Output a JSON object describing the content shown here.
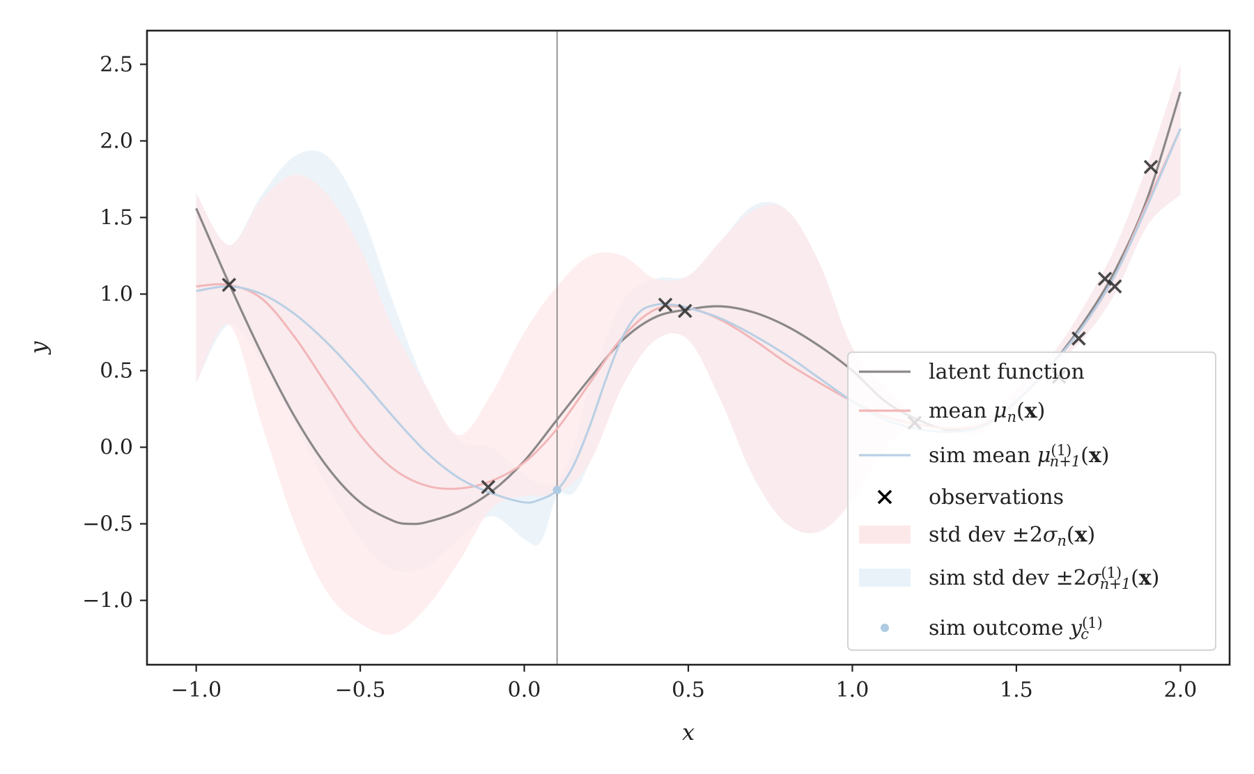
{
  "chart_data": {
    "type": "line",
    "xlabel": "x",
    "ylabel": "y",
    "xlim": [
      -1.15,
      2.15
    ],
    "ylim": [
      -1.42,
      2.72
    ],
    "xticks": [
      -1.0,
      -0.5,
      0.0,
      0.5,
      1.0,
      1.5,
      2.0
    ],
    "yticks": [
      -1.0,
      -0.5,
      0.0,
      0.5,
      1.0,
      1.5,
      2.0,
      2.5
    ],
    "xtick_labels": [
      "−1.0",
      "−0.5",
      "0.0",
      "0.5",
      "1.0",
      "1.5",
      "2.0"
    ],
    "ytick_labels": [
      "−1.0",
      "−0.5",
      "0.0",
      "0.5",
      "1.0",
      "1.5",
      "2.0",
      "2.5"
    ],
    "grid": false,
    "vline_x": 0.1,
    "legend_position": "lower-right",
    "colors": {
      "latent": "#8c8889",
      "mean": "#f2b6b8",
      "sim_mean": "#b9cfe4",
      "observations": "#2a2a2a",
      "std_band": "#fde8e9",
      "sim_std_band": "#e9f2f9",
      "sim_outcome": "#aecbe1",
      "vline": "#808080"
    },
    "legend": [
      {
        "key": "latent",
        "kind": "line",
        "parts": [
          {
            "t": "latent function"
          }
        ]
      },
      {
        "key": "mean",
        "kind": "line",
        "parts": [
          {
            "t": "mean "
          },
          {
            "t": "μ",
            "s": "math"
          },
          {
            "t": "n",
            "s": "sub"
          },
          {
            "t": "("
          },
          {
            "t": "x",
            "s": "bold"
          },
          {
            "t": ")"
          }
        ]
      },
      {
        "key": "sim_mean",
        "kind": "line",
        "parts": [
          {
            "t": "sim mean "
          },
          {
            "t": "μ",
            "s": "math"
          },
          {
            "t": "(1)",
            "s": "sup"
          },
          {
            "t": "n+1",
            "s": "sub"
          },
          {
            "t": "("
          },
          {
            "t": "x",
            "s": "bold"
          },
          {
            "t": ")"
          }
        ]
      },
      {
        "key": "observations",
        "kind": "cross",
        "parts": [
          {
            "t": "observations"
          }
        ]
      },
      {
        "key": "std_band",
        "kind": "patch",
        "parts": [
          {
            "t": "std dev ±2"
          },
          {
            "t": "σ",
            "s": "math"
          },
          {
            "t": "n",
            "s": "sub"
          },
          {
            "t": "("
          },
          {
            "t": "x",
            "s": "bold"
          },
          {
            "t": ")"
          }
        ]
      },
      {
        "key": "sim_std_band",
        "kind": "patch",
        "parts": [
          {
            "t": "sim std dev ±2"
          },
          {
            "t": "σ",
            "s": "math"
          },
          {
            "t": "(1)",
            "s": "sup"
          },
          {
            "t": "n+1",
            "s": "sub"
          },
          {
            "t": "("
          },
          {
            "t": "x",
            "s": "bold"
          },
          {
            "t": ")"
          }
        ]
      },
      {
        "key": "sim_outcome",
        "kind": "dot",
        "parts": [
          {
            "t": "sim outcome "
          },
          {
            "t": "y",
            "s": "math"
          },
          {
            "t": "(1)",
            "s": "sup"
          },
          {
            "t": "c",
            "s": "sub"
          }
        ]
      }
    ],
    "series": {
      "latent": {
        "x": [
          -1.0,
          -0.9,
          -0.8,
          -0.7,
          -0.6,
          -0.5,
          -0.4,
          -0.35,
          -0.3,
          -0.2,
          -0.1,
          0.0,
          0.1,
          0.2,
          0.3,
          0.4,
          0.5,
          0.6,
          0.7,
          0.8,
          0.9,
          1.0,
          1.1,
          1.2,
          1.3,
          1.4,
          1.5,
          1.6,
          1.7,
          1.8,
          1.9,
          2.0
        ],
        "y": [
          1.56,
          1.07,
          0.61,
          0.2,
          -0.13,
          -0.36,
          -0.48,
          -0.5,
          -0.49,
          -0.42,
          -0.29,
          -0.09,
          0.18,
          0.45,
          0.7,
          0.85,
          0.9,
          0.92,
          0.88,
          0.79,
          0.66,
          0.5,
          0.3,
          0.18,
          0.11,
          0.14,
          0.3,
          0.52,
          0.8,
          1.15,
          1.63,
          2.32
        ]
      },
      "mean": {
        "x": [
          -1.0,
          -0.9,
          -0.8,
          -0.7,
          -0.6,
          -0.5,
          -0.4,
          -0.3,
          -0.2,
          -0.1,
          0.0,
          0.1,
          0.2,
          0.3,
          0.4,
          0.5,
          0.6,
          0.7,
          0.8,
          0.9,
          1.0,
          1.1,
          1.2,
          1.3,
          1.4,
          1.5,
          1.6,
          1.7,
          1.8,
          1.9,
          2.0
        ],
        "y": [
          1.05,
          1.06,
          0.97,
          0.72,
          0.4,
          0.08,
          -0.14,
          -0.25,
          -0.27,
          -0.22,
          -0.1,
          0.12,
          0.42,
          0.72,
          0.9,
          0.91,
          0.83,
          0.7,
          0.55,
          0.42,
          0.3,
          0.2,
          0.15,
          0.12,
          0.15,
          0.3,
          0.52,
          0.78,
          1.12,
          1.6,
          2.08
        ]
      },
      "sim_mean": {
        "x": [
          -1.0,
          -0.9,
          -0.8,
          -0.7,
          -0.6,
          -0.5,
          -0.4,
          -0.3,
          -0.2,
          -0.1,
          0.0,
          0.05,
          0.1,
          0.15,
          0.2,
          0.25,
          0.3,
          0.35,
          0.4,
          0.45,
          0.5,
          0.6,
          0.7,
          0.8,
          0.9,
          1.0,
          1.1,
          1.2,
          1.3,
          1.4,
          1.5,
          1.6,
          1.7,
          1.8,
          1.9,
          2.0
        ],
        "y": [
          1.02,
          1.05,
          1.0,
          0.87,
          0.68,
          0.45,
          0.2,
          -0.03,
          -0.2,
          -0.3,
          -0.36,
          -0.34,
          -0.28,
          -0.12,
          0.14,
          0.45,
          0.72,
          0.88,
          0.93,
          0.93,
          0.91,
          0.84,
          0.73,
          0.6,
          0.45,
          0.3,
          0.18,
          0.12,
          0.1,
          0.14,
          0.3,
          0.52,
          0.78,
          1.12,
          1.58,
          2.08
        ]
      },
      "std_band": {
        "x": [
          -1.0,
          -0.9,
          -0.8,
          -0.7,
          -0.6,
          -0.5,
          -0.4,
          -0.3,
          -0.2,
          -0.1,
          0.0,
          0.1,
          0.2,
          0.3,
          0.4,
          0.5,
          0.6,
          0.7,
          0.8,
          0.9,
          1.0,
          1.1,
          1.2,
          1.3,
          1.4,
          1.5,
          1.6,
          1.7,
          1.8,
          1.9,
          2.0
        ],
        "lower": [
          0.42,
          0.8,
          0.15,
          -0.5,
          -0.95,
          -1.15,
          -1.22,
          -1.05,
          -0.75,
          -0.4,
          -0.32,
          -0.3,
          -0.1,
          0.4,
          0.7,
          0.7,
          0.3,
          -0.2,
          -0.5,
          -0.55,
          -0.35,
          0.0,
          0.15,
          0.1,
          0.1,
          0.28,
          0.5,
          0.7,
          1.0,
          1.45,
          1.65
        ],
        "upper": [
          1.66,
          1.32,
          1.62,
          1.78,
          1.65,
          1.3,
          0.78,
          0.4,
          0.08,
          0.35,
          0.75,
          1.05,
          1.25,
          1.25,
          1.1,
          1.12,
          1.35,
          1.55,
          1.55,
          1.2,
          0.65,
          0.4,
          0.2,
          0.14,
          0.18,
          0.38,
          0.58,
          0.9,
          1.3,
          1.85,
          2.5
        ]
      },
      "sim_std_band": {
        "x": [
          -1.0,
          -0.9,
          -0.8,
          -0.7,
          -0.6,
          -0.5,
          -0.4,
          -0.3,
          -0.2,
          -0.1,
          0.0,
          0.05,
          0.1,
          0.15,
          0.2,
          0.3,
          0.4,
          0.5,
          0.6,
          0.7,
          0.8,
          0.9,
          1.0,
          1.1,
          1.2,
          1.3,
          1.4,
          1.5,
          1.6,
          1.7,
          1.8,
          1.9,
          2.0
        ],
        "lower": [
          0.42,
          0.8,
          0.55,
          0.15,
          -0.25,
          -0.6,
          -0.8,
          -0.78,
          -0.6,
          -0.45,
          -0.6,
          -0.62,
          -0.32,
          -0.3,
          -0.1,
          0.4,
          0.7,
          0.7,
          0.3,
          -0.2,
          -0.5,
          -0.55,
          -0.35,
          0.0,
          0.15,
          0.1,
          0.1,
          0.28,
          0.5,
          0.7,
          1.0,
          1.45,
          1.65
        ],
        "upper": [
          1.66,
          1.32,
          1.65,
          1.9,
          1.9,
          1.55,
          0.95,
          0.4,
          0.05,
          0.0,
          -0.18,
          -0.24,
          -0.22,
          0.0,
          0.4,
          0.95,
          1.1,
          1.12,
          1.35,
          1.58,
          1.55,
          1.2,
          0.65,
          0.4,
          0.2,
          0.14,
          0.18,
          0.38,
          0.58,
          0.9,
          1.3,
          1.85,
          2.5
        ]
      },
      "observations": {
        "x": [
          -0.9,
          -0.11,
          0.43,
          0.49,
          1.19,
          1.63,
          1.69,
          1.77,
          1.8,
          1.91
        ],
        "y": [
          1.06,
          -0.26,
          0.93,
          0.89,
          0.16,
          0.46,
          0.71,
          1.1,
          1.05,
          1.83
        ]
      },
      "sim_outcome": {
        "x": [
          0.1
        ],
        "y": [
          -0.28
        ]
      }
    }
  }
}
